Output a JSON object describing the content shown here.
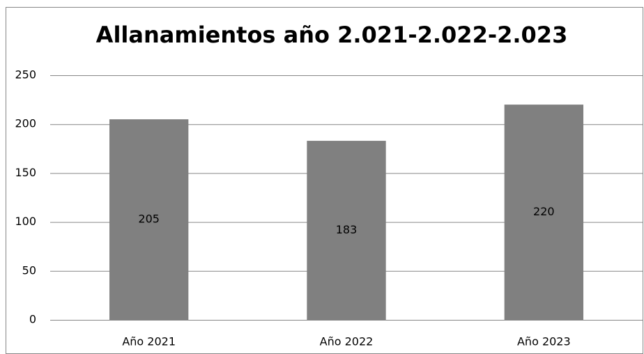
{
  "chart_data": {
    "type": "bar",
    "title": "Allanamientos año 2.021-2.022-2.023",
    "categories": [
      "Año 2021",
      "Año 2022",
      "Año 2023"
    ],
    "values": [
      205,
      183,
      220
    ],
    "color": "#808080",
    "ylim": [
      0,
      250
    ],
    "yticks": [
      0,
      50,
      100,
      150,
      200,
      250
    ],
    "grid": true
  }
}
